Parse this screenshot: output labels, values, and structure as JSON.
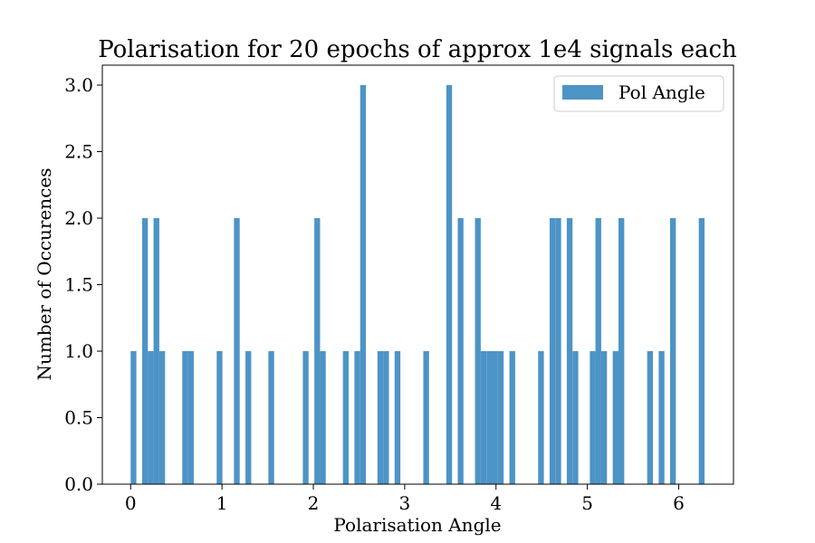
{
  "chart_data": {
    "type": "bar",
    "title": "Polarisation for 20 epochs of approx 1e4 signals each",
    "xlabel": "Polarisation Angle",
    "ylabel": "Number of Occurences",
    "xlim": [
      -0.31,
      6.6
    ],
    "ylim": [
      0,
      3.15
    ],
    "xticks": [
      0,
      1,
      2,
      3,
      4,
      5,
      6
    ],
    "xtick_labels": [
      "0",
      "1",
      "2",
      "3",
      "4",
      "5",
      "6"
    ],
    "yticks": [
      0.0,
      0.5,
      1.0,
      1.5,
      2.0,
      2.5,
      3.0
    ],
    "ytick_labels": [
      "0.0",
      "0.5",
      "1.0",
      "1.5",
      "2.0",
      "2.5",
      "3.0"
    ],
    "bin_width": 0.0628,
    "color": "#4d94c6",
    "legend": {
      "entries": [
        "Pol Angle"
      ],
      "placement": "top-right"
    },
    "grid": false,
    "series": [
      {
        "name": "Pol Angle",
        "bin_starts": [
          0.0,
          0.126,
          0.188,
          0.251,
          0.314,
          0.565,
          0.628,
          0.942,
          1.131,
          1.257,
          1.508,
          1.885,
          2.011,
          2.073,
          2.324,
          2.45,
          2.513,
          2.702,
          2.765,
          2.89,
          3.204,
          3.456,
          3.581,
          3.77,
          3.833,
          3.896,
          3.958,
          4.021,
          4.147,
          4.461,
          4.587,
          4.65,
          4.775,
          4.838,
          5.027,
          5.089,
          5.152,
          5.278,
          5.341,
          5.655,
          5.781,
          5.906,
          6.22
        ],
        "values": [
          1,
          2,
          1,
          2,
          1,
          1,
          1,
          1,
          2,
          1,
          1,
          1,
          2,
          1,
          1,
          1,
          3,
          1,
          1,
          1,
          1,
          3,
          2,
          2,
          1,
          1,
          1,
          1,
          1,
          1,
          2,
          2,
          2,
          1,
          1,
          2,
          1,
          1,
          2,
          1,
          1,
          2,
          2
        ]
      }
    ]
  }
}
